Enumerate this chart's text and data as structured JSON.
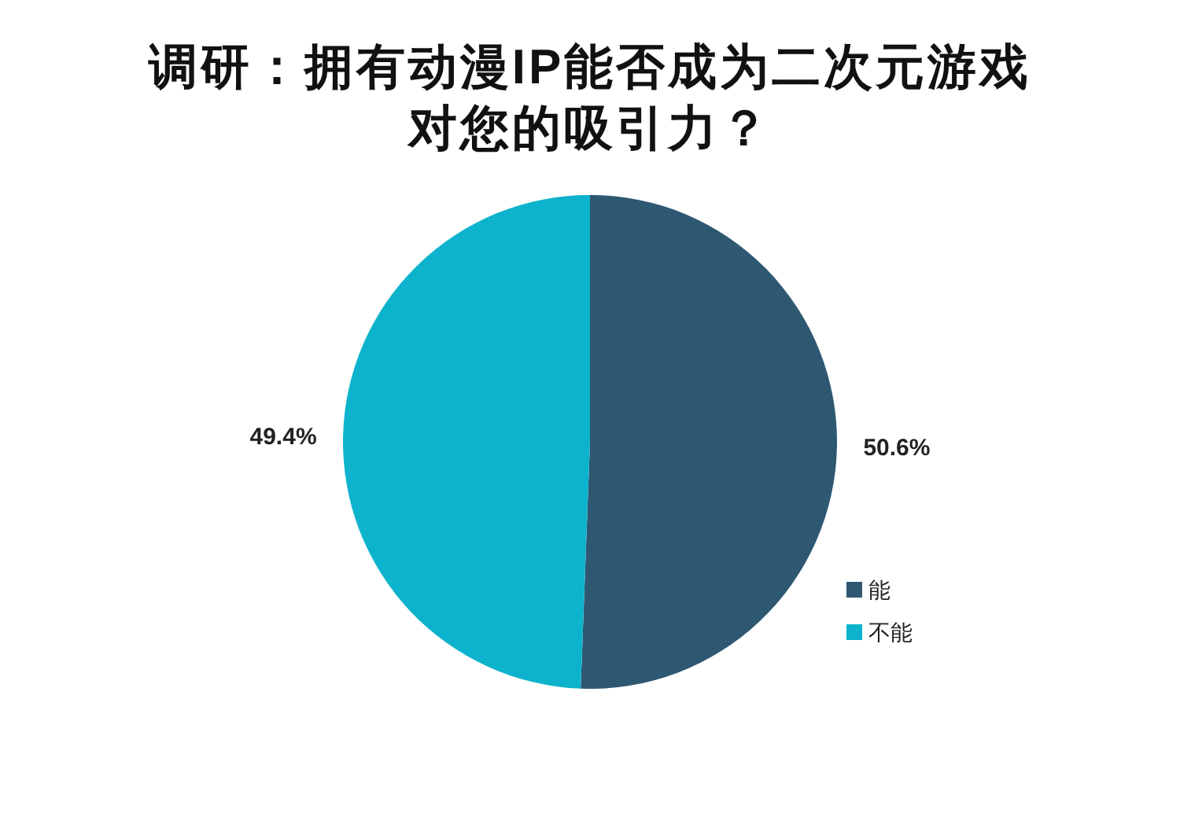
{
  "chart_data": {
    "type": "pie",
    "title": "调研：拥有动漫IP能否成为二次元游戏对您的吸引力？",
    "categories": [
      "能",
      "不能"
    ],
    "values": [
      50.6,
      49.4
    ],
    "colors": [
      "#2e5872",
      "#0db3cc"
    ],
    "value_labels": [
      "50.6%",
      "49.4%"
    ],
    "legend": "bottom right"
  }
}
